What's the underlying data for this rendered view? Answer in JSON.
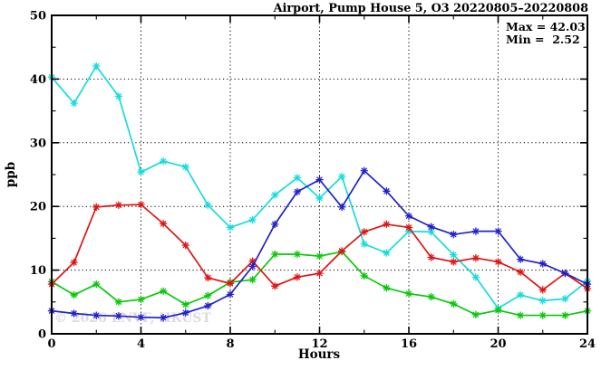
{
  "page": {
    "background": "#ffffff",
    "frame_color": "#000000"
  },
  "header": {
    "title": "Airport, Pump House 5, O3 20220805–20220808"
  },
  "annotation": {
    "max_line": "Max = 42.03",
    "min_line": "Min =  2.52"
  },
  "watermark": "© 2026 ENVF, HKUST",
  "chart_data": {
    "type": "line",
    "title": "Airport, Pump House 5, O3 20220805–20220808",
    "xlabel": "Hours",
    "ylabel": "ppb",
    "xlim": [
      0,
      24
    ],
    "ylim": [
      0,
      50
    ],
    "x_ticks_major": [
      0,
      4,
      8,
      12,
      16,
      20,
      24
    ],
    "x_ticks_minor": [
      2,
      6,
      10,
      14,
      18,
      22
    ],
    "y_ticks_major": [
      0,
      10,
      20,
      30,
      40,
      50
    ],
    "y_ticks_minor": [
      5,
      15,
      25,
      35,
      45
    ],
    "grid_x": [
      4,
      8,
      12,
      16,
      20
    ],
    "grid_y": [
      10,
      20,
      30,
      40
    ],
    "grid_on": true,
    "legend": "none",
    "marker": "asterisk",
    "max_value": 42.03,
    "min_value": 2.52,
    "x": [
      0,
      1,
      2,
      3,
      4,
      5,
      6,
      7,
      8,
      9,
      10,
      11,
      12,
      13,
      14,
      15,
      16,
      17,
      18,
      19,
      20,
      21,
      22,
      23,
      24
    ],
    "series": [
      {
        "name": "series-cyan",
        "color": "#17dcdc",
        "values": [
          40.3,
          36.2,
          42.03,
          37.3,
          25.4,
          27.1,
          26.2,
          20.2,
          16.7,
          17.9,
          21.8,
          24.5,
          21.3,
          24.7,
          14.1,
          12.7,
          16.1,
          16.0,
          12.4,
          8.9,
          4.0,
          6.1,
          5.2,
          5.5,
          8.3
        ]
      },
      {
        "name": "series-green",
        "color": "#0ac80a",
        "values": [
          8.2,
          6.1,
          7.8,
          5.0,
          5.4,
          6.7,
          4.6,
          6.0,
          8.1,
          8.5,
          12.5,
          12.5,
          12.2,
          12.9,
          9.1,
          7.2,
          6.3,
          5.8,
          4.7,
          3.0,
          3.7,
          2.9,
          2.9,
          2.9,
          3.6
        ]
      },
      {
        "name": "series-red",
        "color": "#e01414",
        "values": [
          7.8,
          11.2,
          19.9,
          20.2,
          20.3,
          17.3,
          13.9,
          8.8,
          7.9,
          11.4,
          7.5,
          8.9,
          9.5,
          13.0,
          16.0,
          17.2,
          16.7,
          12.0,
          11.3,
          11.9,
          11.3,
          9.7,
          6.9,
          9.5,
          7.1
        ]
      },
      {
        "name": "series-blue",
        "color": "#2121cc",
        "values": [
          3.6,
          3.2,
          2.9,
          2.8,
          2.6,
          2.52,
          3.3,
          4.4,
          6.2,
          10.6,
          17.2,
          22.3,
          24.2,
          19.9,
          25.6,
          22.4,
          18.5,
          16.8,
          15.6,
          16.1,
          16.1,
          11.7,
          11.0,
          9.5,
          7.8
        ]
      }
    ]
  }
}
